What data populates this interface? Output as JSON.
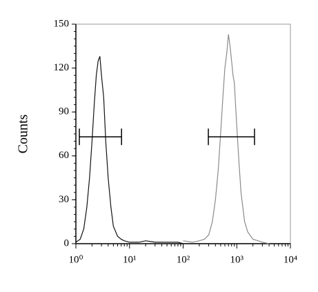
{
  "chart_data": {
    "type": "line",
    "ylabel": "Counts",
    "xscale": "log",
    "xlim": [
      1,
      10000
    ],
    "ylim": [
      0,
      150
    ],
    "xticks": [
      {
        "value": 1,
        "label": "10⁰"
      },
      {
        "value": 10,
        "label": "10¹"
      },
      {
        "value": 100,
        "label": "10²"
      },
      {
        "value": 1000,
        "label": "10³"
      },
      {
        "value": 10000,
        "label": "10⁴"
      }
    ],
    "yticks": [
      0,
      30,
      60,
      90,
      120,
      150
    ],
    "series": [
      {
        "color": "#111111",
        "x": [
          1,
          1.2,
          1.4,
          1.6,
          1.8,
          2.0,
          2.2,
          2.4,
          2.6,
          2.8,
          3.0,
          3.3,
          3.6,
          4.0,
          4.5,
          5,
          6,
          7,
          8,
          10,
          15,
          20,
          30,
          50,
          80,
          100,
          200,
          500,
          1000,
          10000
        ],
        "values": [
          1,
          3,
          10,
          25,
          45,
          70,
          95,
          115,
          125,
          128,
          115,
          100,
          70,
          45,
          25,
          12,
          5,
          3,
          2,
          1,
          1,
          2,
          1,
          1,
          1,
          0,
          0,
          0,
          0,
          0
        ]
      },
      {
        "color": "#8a8a8a",
        "x": [
          100,
          150,
          200,
          250,
          300,
          350,
          400,
          450,
          500,
          550,
          600,
          650,
          700,
          750,
          800,
          850,
          900,
          1000,
          1100,
          1200,
          1400,
          1600,
          2000,
          2500,
          3000,
          4000
        ],
        "values": [
          2,
          1,
          2,
          3,
          6,
          15,
          30,
          50,
          75,
          100,
          120,
          130,
          143,
          135,
          125,
          115,
          110,
          80,
          55,
          35,
          15,
          8,
          3,
          2,
          1,
          0
        ]
      }
    ],
    "gates": [
      {
        "x": [
          1.16,
          7.1
        ],
        "y": 73
      },
      {
        "x": [
          295,
          2140
        ],
        "y": 73
      }
    ]
  }
}
